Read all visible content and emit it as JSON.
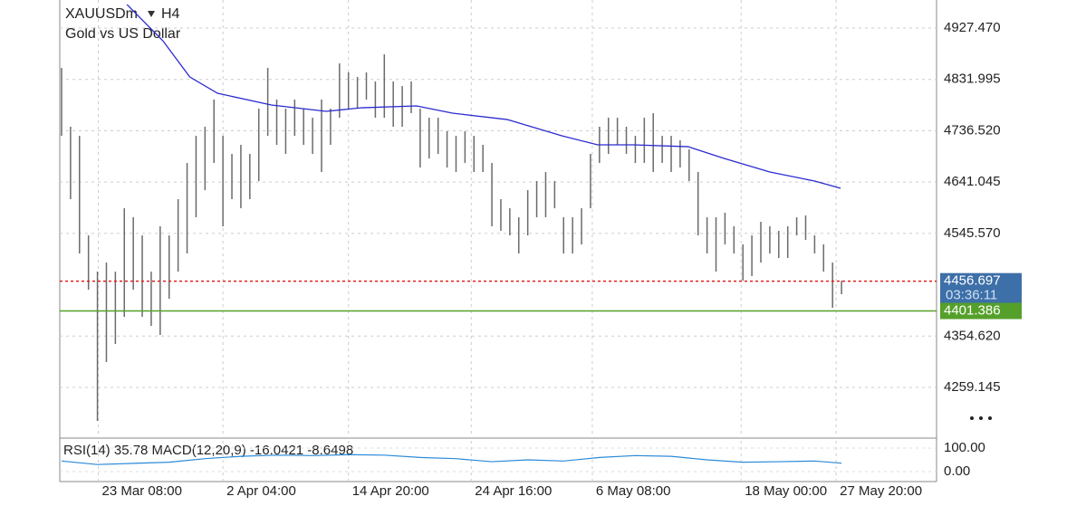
{
  "header": {
    "symbol": "XAUUSDm",
    "timeframe": "H4",
    "description": "Gold vs US Dollar"
  },
  "chart_data": {
    "type": "hilo",
    "color": "#6b6b6b",
    "high": [
      4853.4,
      4744.0,
      4727.1,
      4541.9,
      4474.6,
      4491.4,
      4474.6,
      4592.4,
      4575.6,
      4541.9,
      4474.6,
      4558.8,
      4541.9,
      4609.3,
      4676.6,
      4727.1,
      4744.0,
      4794.5,
      4727.1,
      4693.5,
      4710.3,
      4693.5,
      4777.6,
      4853.4,
      4794.5,
      4777.6,
      4794.5,
      4777.6,
      4760.8,
      4794.5,
      4777.6,
      4861.8,
      4845.0,
      4836.6,
      4845.0,
      4828.2,
      4878.6,
      4828.2,
      4819.7,
      4828.2,
      4777.6,
      4760.8,
      4760.8,
      4735.6,
      4727.1,
      4735.6,
      4727.1,
      4710.3,
      4676.6,
      4609.3,
      4592.4,
      4575.6,
      4626.1,
      4643.0,
      4659.8,
      4643.0,
      4575.6,
      4575.6,
      4592.4,
      4693.5,
      4744.0,
      4760.8,
      4760.8,
      4744.0,
      4727.1,
      4760.8,
      4769.2,
      4727.1,
      4727.1,
      4718.7,
      4701.9,
      4659.8,
      4575.6,
      4575.6,
      4584.0,
      4558.8,
      4525.1,
      4541.9,
      4567.2,
      4558.8,
      4550.4,
      4558.8,
      4575.6,
      4579.0,
      4541.9,
      4525.1,
      4491.4,
      4457.8
    ],
    "low": [
      4727.1,
      4609.3,
      4508.3,
      4440.9,
      4196.8,
      4306.3,
      4339.9,
      4390.4,
      4440.9,
      4390.4,
      4373.6,
      4356.8,
      4424.1,
      4474.6,
      4508.3,
      4575.6,
      4626.1,
      4676.6,
      4558.8,
      4609.3,
      4592.4,
      4609.3,
      4643.0,
      4727.1,
      4710.3,
      4693.5,
      4727.1,
      4710.3,
      4693.5,
      4659.8,
      4710.3,
      4760.8,
      4777.6,
      4777.6,
      4794.5,
      4760.8,
      4760.8,
      4744.0,
      4744.0,
      4769.2,
      4668.2,
      4685.1,
      4693.5,
      4668.2,
      4659.8,
      4676.6,
      4659.8,
      4659.8,
      4558.8,
      4550.4,
      4541.9,
      4508.3,
      4541.9,
      4575.6,
      4575.6,
      4592.4,
      4508.3,
      4508.3,
      4525.1,
      4592.4,
      4676.6,
      4693.5,
      4710.3,
      4693.5,
      4676.6,
      4676.6,
      4659.8,
      4676.6,
      4659.8,
      4668.2,
      4643.0,
      4541.9,
      4508.3,
      4474.6,
      4525.1,
      4508.3,
      4457.8,
      4466.2,
      4491.4,
      4508.3,
      4499.9,
      4499.9,
      4541.9,
      4533.5,
      4508.3,
      4474.6,
      4407.3,
      4432.5
    ],
    "ma": {
      "color": "#2a2ad0",
      "x": [
        7.3,
        11.3,
        14.3,
        17.4,
        23.4,
        29.5,
        33.5,
        39.6,
        43.6,
        49.7,
        55.8,
        59.8,
        63.8,
        69.9,
        73.9,
        79,
        84,
        86.9
      ],
      "values": [
        4971.2,
        4903.9,
        4836.6,
        4806.3,
        4784.4,
        4772.6,
        4779.3,
        4782.7,
        4769.2,
        4757.4,
        4727.1,
        4710.3,
        4710.3,
        4706.9,
        4685.1,
        4659.8,
        4643.0,
        4629.5
      ]
    },
    "xlim": [
      -0.2,
      97.6
    ],
    "ylim": [
      4164.9,
      4979.7
    ],
    "yticks": [
      {
        "value": 4927.47,
        "label": "4927.470"
      },
      {
        "value": 4831.995,
        "label": "4831.995"
      },
      {
        "value": 4736.52,
        "label": "4736.520"
      },
      {
        "value": 4641.045,
        "label": "4641.045"
      },
      {
        "value": 4545.57,
        "label": "4545.570"
      },
      {
        "value": 4354.62,
        "label": "4354.620"
      },
      {
        "value": 4259.145,
        "label": "4259.145"
      }
    ],
    "xticks": [
      {
        "value": 4.1,
        "label": "23 Mar 08:00"
      },
      {
        "value": 18.0,
        "label": "2 Apr 04:00"
      },
      {
        "value": 32.0,
        "label": "14 Apr 20:00"
      },
      {
        "value": 45.7,
        "label": "24 Apr 16:00"
      },
      {
        "value": 59.2,
        "label": "6 May 08:00"
      },
      {
        "value": 75.8,
        "label": "18 May 00:00"
      },
      {
        "value": 86.4,
        "label": "27 May 20:00"
      }
    ],
    "grid": true,
    "price_lines": [
      {
        "value": 4456.697,
        "color": "#e02020",
        "box_color": "#3d6fa8",
        "countdown": "03:36:11"
      },
      {
        "value": 4401.386,
        "color": "#55a02a",
        "box_color": "#55a02a"
      }
    ],
    "indicator": {
      "label": "RSI(14) 35.78 MACD(12,20,9) -16.0421 -8.6498",
      "ylim": [
        -42.3,
        130.8
      ],
      "yticks": [
        {
          "value": 100,
          "label": "100.00"
        },
        {
          "value": 0,
          "label": "0.00"
        }
      ],
      "rsi": {
        "color": "#2a8ad8",
        "x": [
          0,
          4,
          8,
          12,
          16,
          20,
          24,
          28,
          32,
          36,
          40,
          44,
          48,
          52,
          56,
          60,
          64,
          68,
          72,
          76,
          80,
          84,
          87
        ],
        "values": [
          45,
          30,
          35,
          40,
          55,
          65,
          70,
          68,
          72,
          70,
          60,
          55,
          42,
          50,
          45,
          60,
          68,
          65,
          50,
          40,
          42,
          45,
          35.78
        ]
      }
    }
  }
}
